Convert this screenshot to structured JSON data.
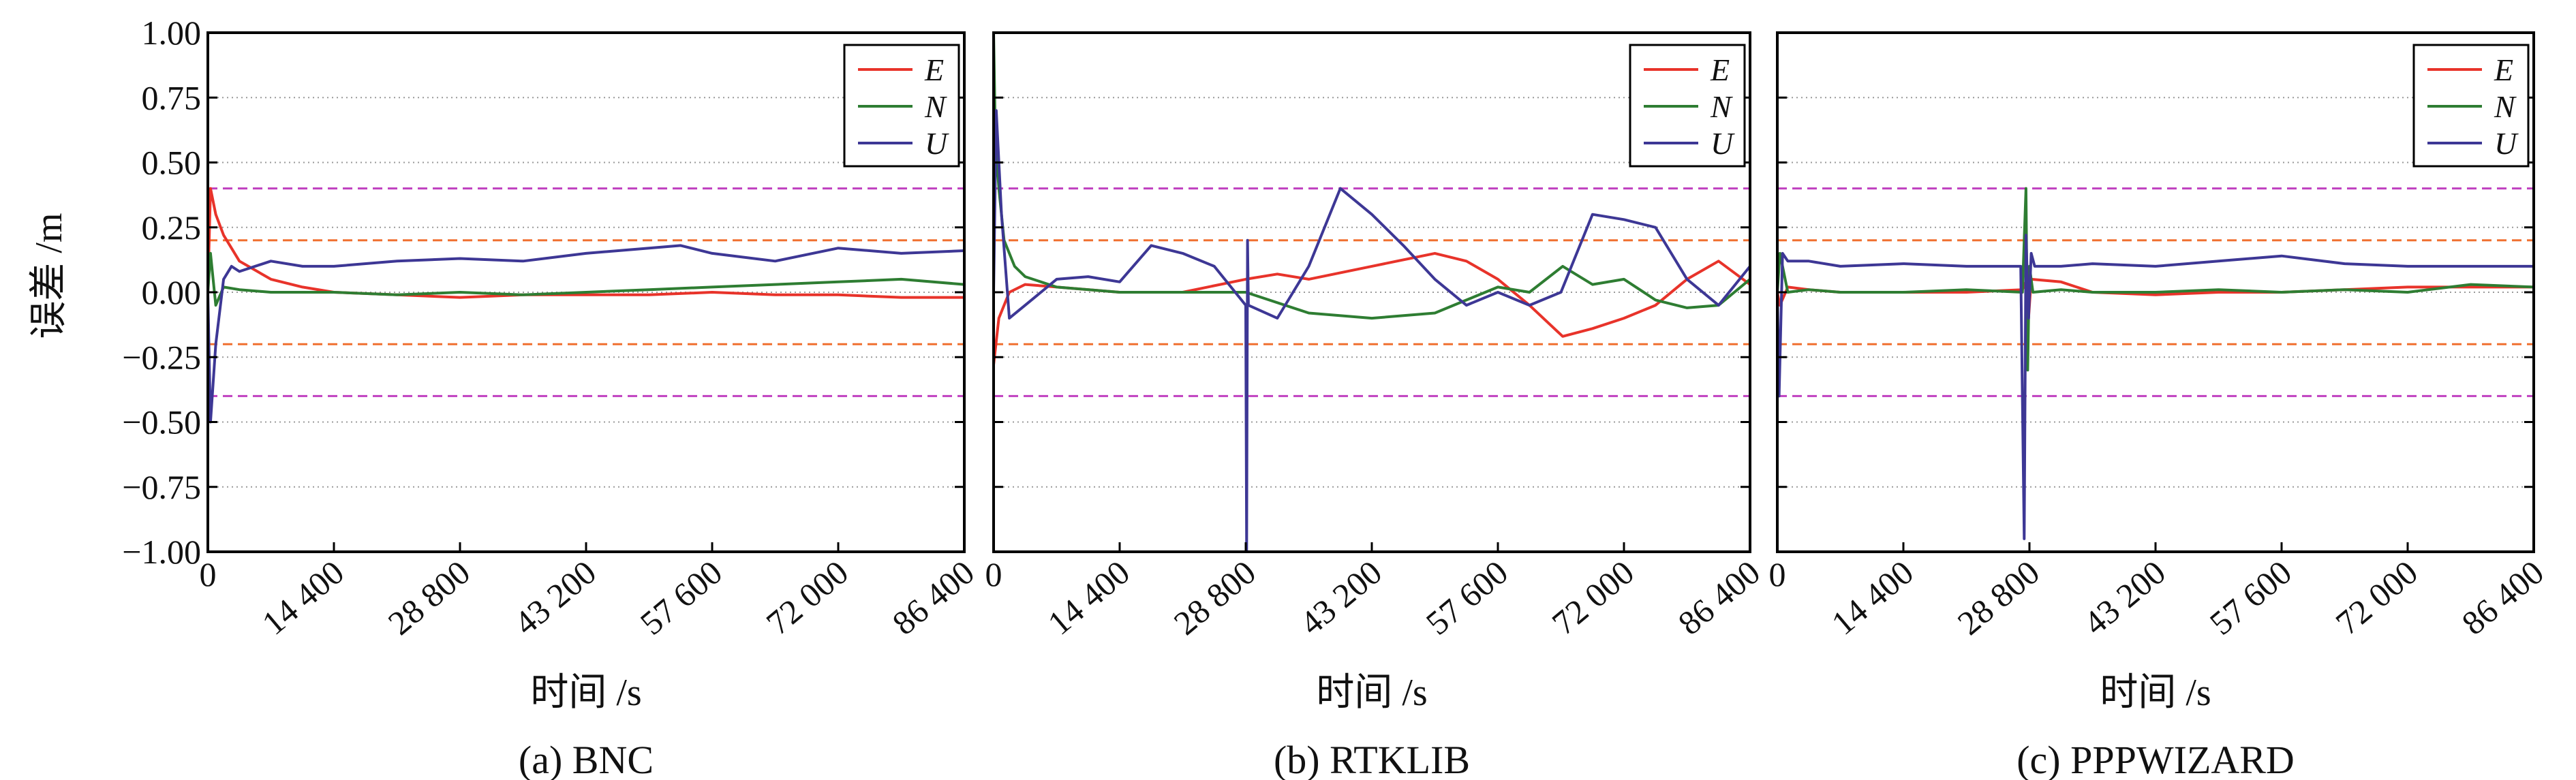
{
  "figure": {
    "ylabel": "误差 /m",
    "xlabel": "时间 /s",
    "colors": {
      "E": "#e8332a",
      "N": "#2e7d32",
      "U": "#3d3795",
      "threshold_outer": "#c040c0",
      "threshold_inner": "#f07030",
      "grid": "#9a9a9a"
    }
  },
  "chart_data": [
    {
      "type": "line",
      "caption": "(a) BNC",
      "xlabel": "时间 /s",
      "ylabel": "误差 /m",
      "xlim": [
        0,
        86400
      ],
      "ylim": [
        -1.0,
        1.0
      ],
      "xticks": [
        0,
        14400,
        28800,
        43200,
        57600,
        72000,
        86400
      ],
      "xtick_labels": [
        "0",
        "14 400",
        "28 800",
        "43 200",
        "57 600",
        "72 000",
        "86 400"
      ],
      "yticks": [
        -1.0,
        -0.75,
        -0.5,
        -0.25,
        0.0,
        0.25,
        0.5,
        0.75,
        1.0
      ],
      "ytick_labels": [
        "−1.00",
        "−0.75",
        "−0.50",
        "−0.25",
        "0.00",
        "0.25",
        "0.50",
        "0.75",
        "1.00"
      ],
      "hlines": [
        0.4,
        0.2,
        -0.2,
        -0.4
      ],
      "grid": "horizontal dotted",
      "legend": "top-right",
      "series": [
        {
          "name": "E",
          "x": [
            0,
            300,
            900,
            1800,
            3600,
            7200,
            10800,
            14400,
            21600,
            28800,
            36000,
            43200,
            50400,
            57600,
            64800,
            72000,
            79200,
            86400
          ],
          "y": [
            0.0,
            0.4,
            0.3,
            0.22,
            0.12,
            0.05,
            0.02,
            0.0,
            -0.01,
            -0.02,
            -0.01,
            -0.01,
            -0.01,
            0.0,
            -0.01,
            -0.01,
            -0.02,
            -0.02
          ]
        },
        {
          "name": "N",
          "x": [
            0,
            300,
            900,
            1800,
            3600,
            7200,
            14400,
            21600,
            28800,
            36000,
            43200,
            50400,
            57600,
            64800,
            72000,
            79200,
            86400
          ],
          "y": [
            0.0,
            0.15,
            -0.05,
            0.02,
            0.01,
            0.0,
            0.0,
            -0.01,
            0.0,
            -0.01,
            0.0,
            0.01,
            0.02,
            0.03,
            0.04,
            0.05,
            0.03
          ]
        },
        {
          "name": "U",
          "x": [
            0,
            300,
            900,
            1800,
            2700,
            3600,
            7200,
            10800,
            14400,
            21600,
            28800,
            36000,
            43200,
            50400,
            54000,
            57600,
            64800,
            72000,
            79200,
            86400
          ],
          "y": [
            0.0,
            -0.5,
            -0.2,
            0.05,
            0.1,
            0.08,
            0.12,
            0.1,
            0.1,
            0.12,
            0.13,
            0.12,
            0.15,
            0.17,
            0.18,
            0.15,
            0.12,
            0.17,
            0.15,
            0.16
          ]
        }
      ]
    },
    {
      "type": "line",
      "caption": "(b) RTKLIB",
      "xlabel": "时间 /s",
      "ylabel": "",
      "xlim": [
        0,
        86400
      ],
      "ylim": [
        -1.0,
        1.0
      ],
      "xticks": [
        0,
        14400,
        28800,
        43200,
        57600,
        72000,
        86400
      ],
      "xtick_labels": [
        "0",
        "14 400",
        "28 800",
        "43 200",
        "57 600",
        "72 000",
        "86 400"
      ],
      "hlines": [
        0.4,
        0.2,
        -0.2,
        -0.4
      ],
      "grid": "horizontal dotted",
      "legend": "top-right",
      "series": [
        {
          "name": "E",
          "x": [
            0,
            600,
            1800,
            3600,
            7200,
            14400,
            21600,
            28800,
            32400,
            36000,
            43200,
            50400,
            54000,
            57600,
            61200,
            65000,
            68400,
            72000,
            75600,
            79200,
            82800,
            86400
          ],
          "y": [
            -0.28,
            -0.1,
            0.0,
            0.03,
            0.02,
            0.0,
            0.0,
            0.05,
            0.07,
            0.05,
            0.1,
            0.15,
            0.12,
            0.05,
            -0.05,
            -0.17,
            -0.14,
            -0.1,
            -0.05,
            0.05,
            0.12,
            0.03
          ]
        },
        {
          "name": "N",
          "x": [
            0,
            200,
            600,
            1200,
            2400,
            3600,
            7200,
            14400,
            21600,
            28800,
            36000,
            43200,
            50400,
            54000,
            57600,
            61200,
            65000,
            68400,
            72000,
            75600,
            79200,
            82800,
            86400
          ],
          "y": [
            1.0,
            0.6,
            0.4,
            0.2,
            0.1,
            0.06,
            0.02,
            0.0,
            0.0,
            0.0,
            -0.08,
            -0.1,
            -0.08,
            -0.03,
            0.02,
            0.0,
            0.1,
            0.03,
            0.05,
            -0.03,
            -0.06,
            -0.05,
            0.05
          ]
        },
        {
          "name": "U",
          "x": [
            0,
            300,
            900,
            1800,
            3600,
            7200,
            10800,
            14400,
            18000,
            21600,
            25200,
            28800,
            28900,
            29000,
            29100,
            32400,
            36000,
            39600,
            43200,
            46800,
            50400,
            54000,
            57600,
            61200,
            64800,
            68400,
            72000,
            75600,
            79200,
            82800,
            86400
          ],
          "y": [
            0.0,
            0.7,
            0.3,
            -0.1,
            -0.05,
            0.05,
            0.06,
            0.04,
            0.18,
            0.15,
            0.1,
            -0.05,
            -1.0,
            0.2,
            -0.05,
            -0.1,
            0.1,
            0.4,
            0.3,
            0.18,
            0.05,
            -0.05,
            0.0,
            -0.05,
            0.0,
            0.3,
            0.28,
            0.25,
            0.05,
            -0.05,
            0.1
          ]
        }
      ]
    },
    {
      "type": "line",
      "caption": "(c) PPPWIZARD",
      "xlabel": "时间 /s",
      "ylabel": "",
      "xlim": [
        0,
        86400
      ],
      "ylim": [
        -1.0,
        1.0
      ],
      "xticks": [
        0,
        14400,
        28800,
        43200,
        57600,
        72000,
        86400
      ],
      "xtick_labels": [
        "0",
        "14 400",
        "28 800",
        "43 200",
        "57 600",
        "72 000",
        "86 400"
      ],
      "hlines": [
        0.4,
        0.2,
        -0.2,
        -0.4
      ],
      "grid": "horizontal dotted",
      "legend": "top-right",
      "series": [
        {
          "name": "E",
          "x": [
            0,
            300,
            1200,
            3600,
            7200,
            14400,
            21600,
            28000,
            28500,
            28700,
            29000,
            32400,
            36000,
            43200,
            50400,
            57600,
            64800,
            72000,
            79200,
            86400
          ],
          "y": [
            0.0,
            -0.05,
            0.02,
            0.01,
            0.0,
            0.0,
            0.0,
            0.01,
            0.05,
            -0.1,
            0.05,
            0.04,
            0.0,
            -0.01,
            0.0,
            0.0,
            0.01,
            0.02,
            0.02,
            0.02
          ]
        },
        {
          "name": "N",
          "x": [
            0,
            300,
            1200,
            3600,
            7200,
            14400,
            21600,
            28000,
            28400,
            28600,
            28800,
            29200,
            32400,
            36000,
            43200,
            50400,
            57600,
            64800,
            72000,
            79200,
            86400
          ],
          "y": [
            0.0,
            0.15,
            0.0,
            0.01,
            0.0,
            0.0,
            0.01,
            0.0,
            0.4,
            -0.3,
            0.1,
            0.0,
            0.01,
            0.0,
            0.0,
            0.01,
            0.0,
            0.01,
            0.0,
            0.03,
            0.02
          ]
        },
        {
          "name": "U",
          "x": [
            0,
            200,
            600,
            1200,
            3600,
            7200,
            14400,
            21600,
            27800,
            28200,
            28400,
            28700,
            29000,
            29400,
            32400,
            36000,
            43200,
            50400,
            57600,
            64800,
            72000,
            79200,
            86400
          ],
          "y": [
            0.0,
            -0.4,
            0.15,
            0.12,
            0.12,
            0.1,
            0.11,
            0.1,
            0.1,
            -0.95,
            0.22,
            -0.1,
            0.15,
            0.1,
            0.1,
            0.11,
            0.1,
            0.12,
            0.14,
            0.11,
            0.1,
            0.1,
            0.1
          ]
        }
      ]
    }
  ]
}
